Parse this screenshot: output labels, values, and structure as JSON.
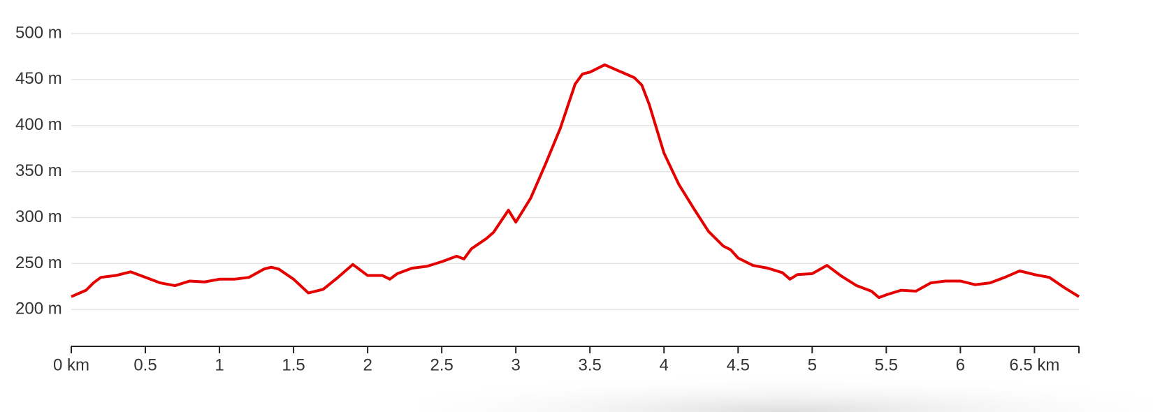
{
  "chart_data": {
    "type": "line",
    "x": [
      0,
      0.1,
      0.15,
      0.2,
      0.3,
      0.4,
      0.5,
      0.6,
      0.7,
      0.8,
      0.9,
      1.0,
      1.1,
      1.2,
      1.3,
      1.35,
      1.4,
      1.5,
      1.6,
      1.7,
      1.8,
      1.9,
      2.0,
      2.1,
      2.15,
      2.2,
      2.3,
      2.4,
      2.5,
      2.6,
      2.65,
      2.7,
      2.8,
      2.85,
      2.9,
      2.95,
      3.0,
      3.1,
      3.2,
      3.3,
      3.4,
      3.45,
      3.5,
      3.6,
      3.7,
      3.8,
      3.85,
      3.9,
      4.0,
      4.1,
      4.2,
      4.3,
      4.4,
      4.45,
      4.5,
      4.6,
      4.7,
      4.8,
      4.85,
      4.9,
      5.0,
      5.1,
      5.2,
      5.3,
      5.4,
      5.45,
      5.5,
      5.6,
      5.7,
      5.8,
      5.9,
      6.0,
      6.1,
      6.2,
      6.3,
      6.4,
      6.5,
      6.6,
      6.7,
      6.8
    ],
    "series": [
      {
        "color": "#e50000",
        "values": [
          214,
          221,
          229,
          235,
          237,
          241,
          235,
          229,
          226,
          231,
          230,
          233,
          233,
          235,
          244,
          246,
          244,
          233,
          218,
          222,
          235,
          249,
          237,
          237,
          233,
          239,
          245,
          247,
          252,
          258,
          255,
          266,
          277,
          284,
          296,
          308,
          295,
          321,
          358,
          397,
          445,
          456,
          458,
          466,
          459,
          452,
          444,
          423,
          370,
          336,
          310,
          285,
          269,
          265,
          256,
          248,
          245,
          240,
          233,
          238,
          239,
          248,
          236,
          226,
          220,
          213,
          216,
          221,
          220,
          229,
          231,
          231,
          227,
          229,
          235,
          242,
          238,
          235,
          224,
          214
        ]
      }
    ],
    "xlim": [
      0,
      6.8
    ],
    "ylim": [
      160,
      500
    ],
    "xticks": [
      {
        "value": 0,
        "label": "0 km"
      },
      0.5,
      1,
      1.5,
      2,
      2.5,
      3,
      3.5,
      4,
      4.5,
      5,
      5.5,
      6,
      {
        "value": 6.5,
        "label": "6.5 km"
      }
    ],
    "yticks": [
      {
        "value": 200,
        "label": "200 m"
      },
      {
        "value": 250,
        "label": "250 m"
      },
      {
        "value": 300,
        "label": "300 m"
      },
      {
        "value": 350,
        "label": "350 m"
      },
      {
        "value": 400,
        "label": "400 m"
      },
      {
        "value": 450,
        "label": "450 m"
      },
      {
        "value": 500,
        "label": "500 m"
      }
    ],
    "grid": true
  }
}
